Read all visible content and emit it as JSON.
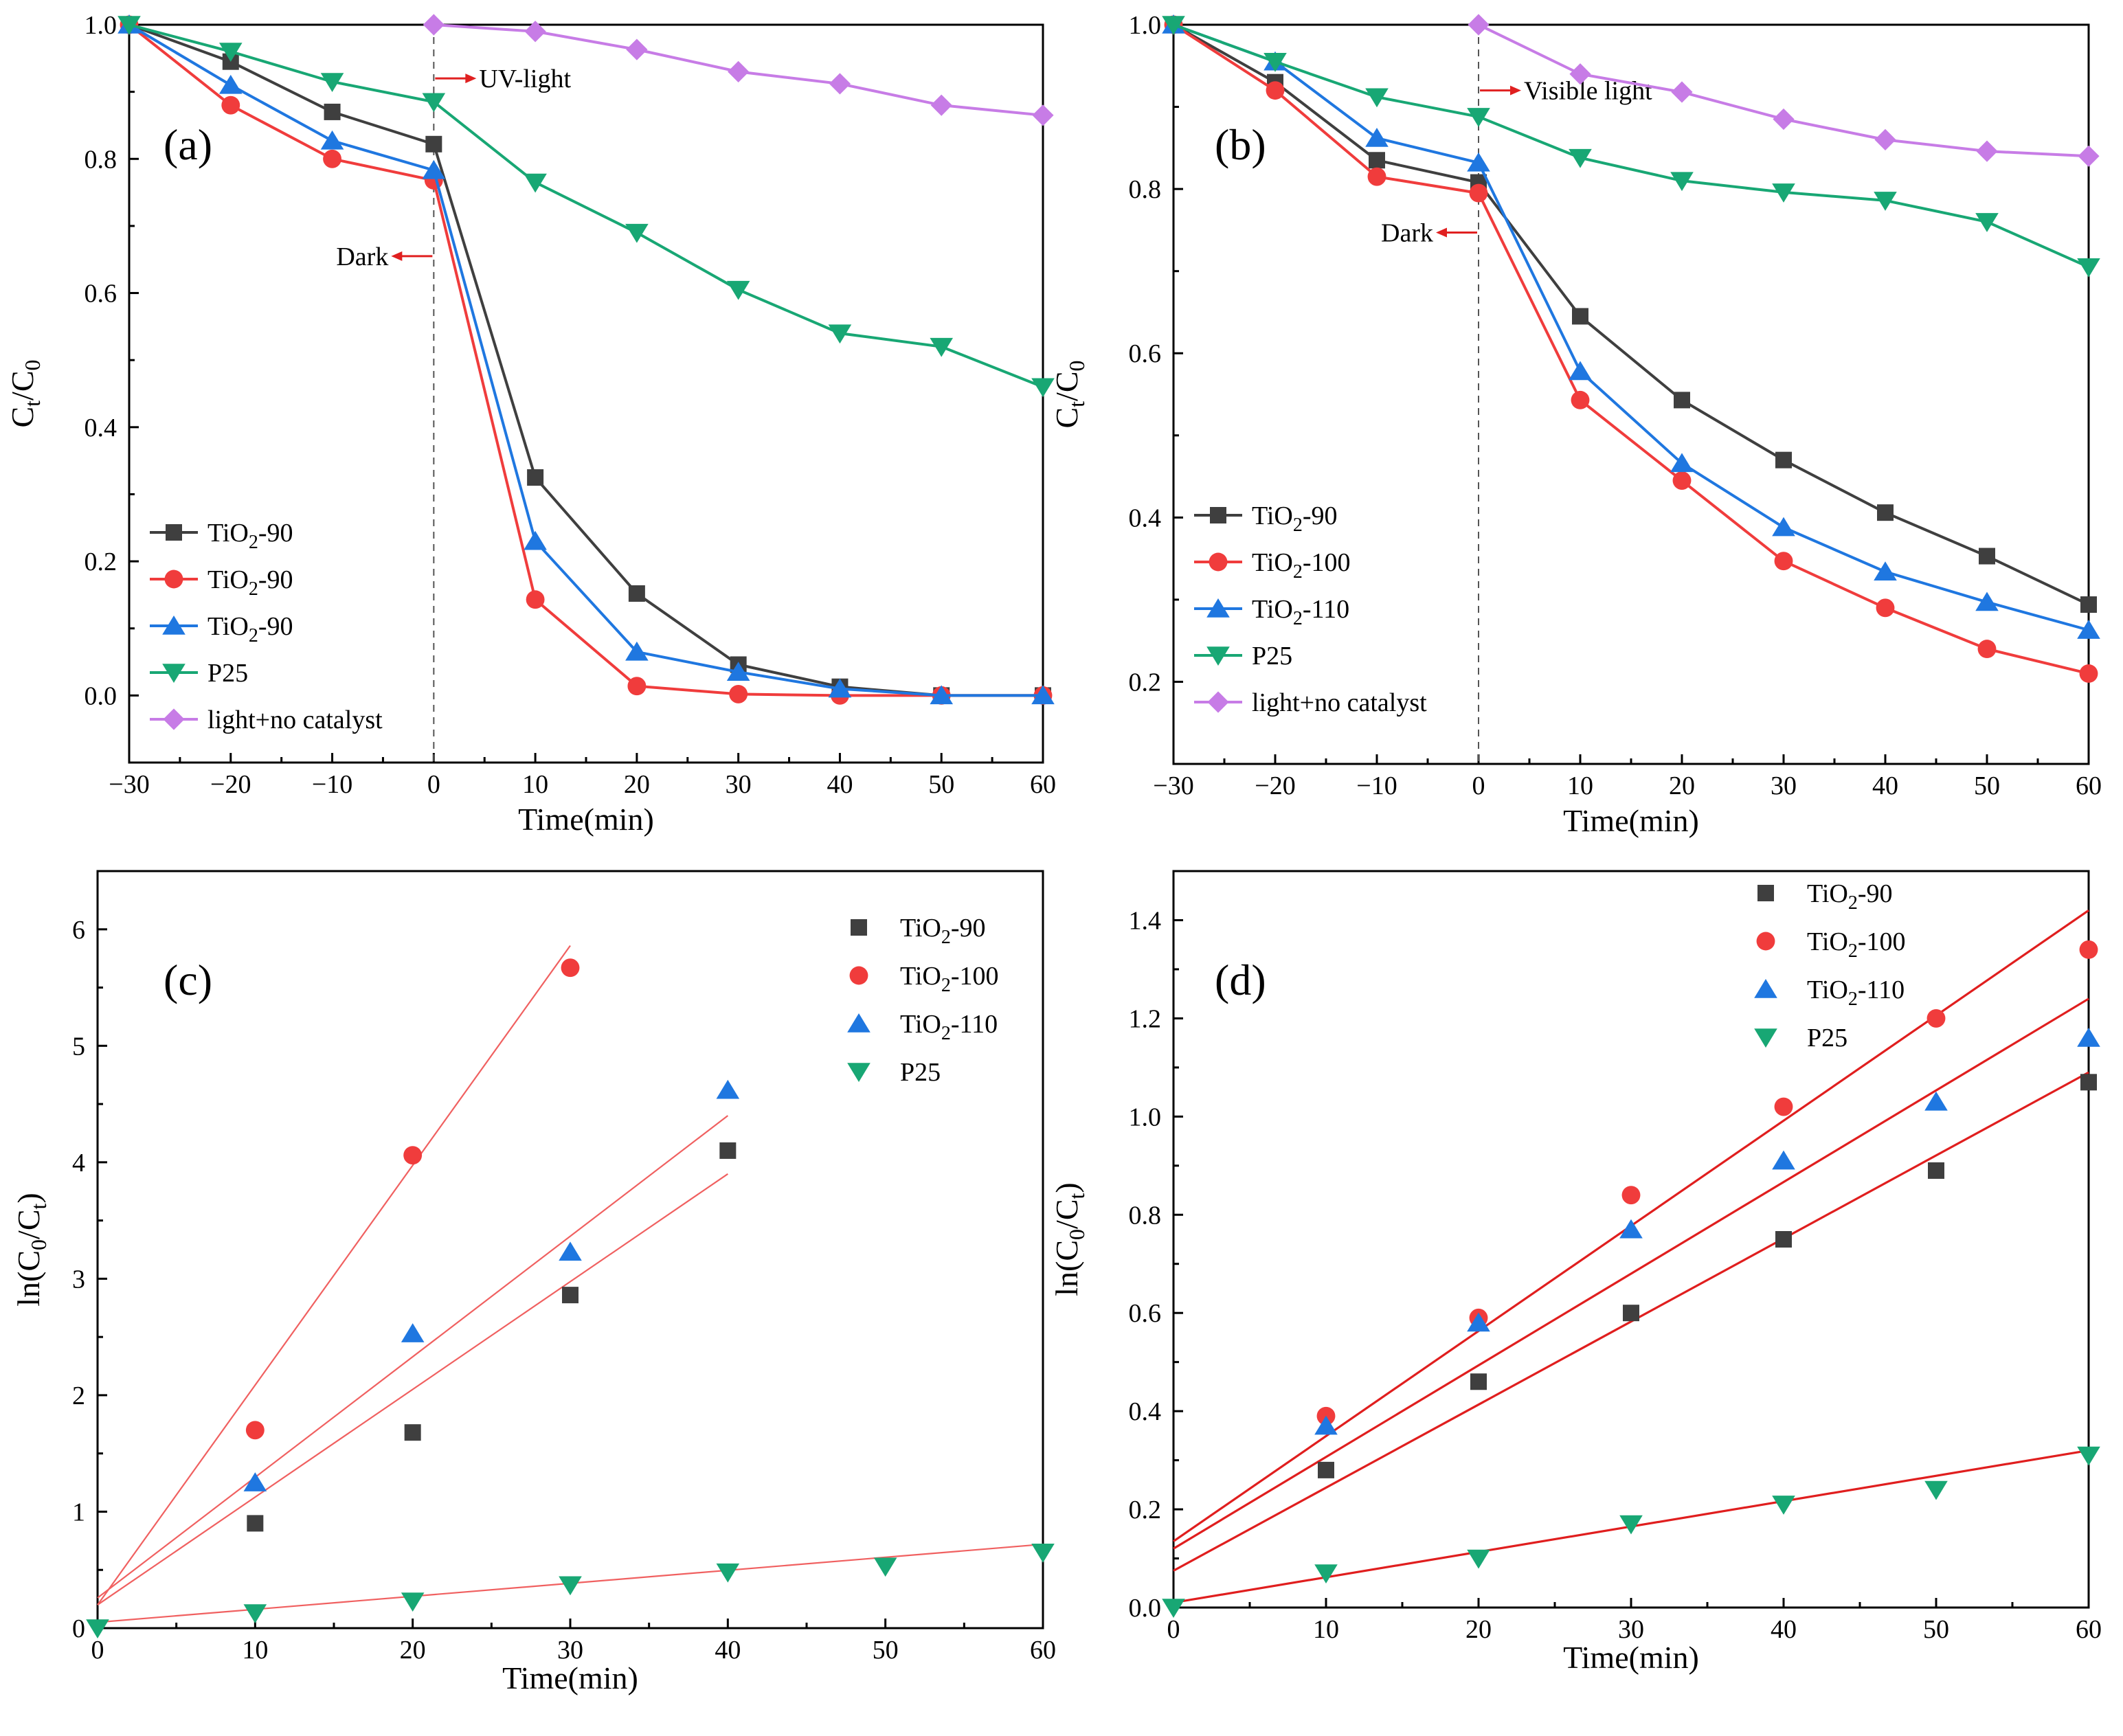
{
  "chart_data": [
    {
      "id": "a",
      "type": "line",
      "panel_label": "(a)",
      "xlabel": "Time(min)",
      "ylabel": "Ct/C0",
      "xlim": [
        -30,
        60
      ],
      "ylim": [
        -0.1,
        1.0
      ],
      "xticks": [
        -30,
        -20,
        -10,
        0,
        10,
        20,
        30,
        40,
        50,
        60
      ],
      "xtick_labels": [
        "−30",
        "−20",
        "−10",
        "0",
        "10",
        "20",
        "30",
        "40",
        "50",
        "60"
      ],
      "yticks": [
        0.0,
        0.2,
        0.4,
        0.6,
        0.8,
        1.0
      ],
      "ytick_labels": [
        "0.0",
        "0.2",
        "0.4",
        "0.6",
        "0.8",
        "1.0"
      ],
      "x": [
        -30,
        -20,
        -10,
        0,
        10,
        20,
        30,
        40,
        50,
        60
      ],
      "series": [
        {
          "name": "TiO2-90",
          "legend_main": "TiO",
          "legend_sub": "2",
          "legend_suffix": "-90",
          "marker": "square",
          "color": "#3f3f3f",
          "values": [
            1.0,
            0.945,
            0.87,
            0.822,
            0.325,
            0.152,
            0.046,
            0.013,
            0.0,
            0.0
          ]
        },
        {
          "name": "TiO2-90",
          "legend_main": "TiO",
          "legend_sub": "2",
          "legend_suffix": "-90",
          "marker": "circle",
          "color": "#f03c3c",
          "values": [
            1.0,
            0.88,
            0.8,
            0.768,
            0.143,
            0.014,
            0.002,
            0.0,
            0.0,
            0.0
          ]
        },
        {
          "name": "TiO2-90",
          "legend_main": "TiO",
          "legend_sub": "2",
          "legend_suffix": "-90",
          "marker": "triangle-up",
          "color": "#1f77e0",
          "values": [
            1.0,
            0.91,
            0.827,
            0.783,
            0.23,
            0.065,
            0.035,
            0.01,
            0.0,
            0.0
          ]
        },
        {
          "name": "P25",
          "legend_main": "P25",
          "legend_sub": "",
          "legend_suffix": "",
          "marker": "triangle-down",
          "color": "#18a774",
          "values": [
            1.0,
            0.96,
            0.915,
            0.885,
            0.765,
            0.69,
            0.605,
            0.54,
            0.52,
            0.46
          ]
        },
        {
          "name": "light+no catalyst",
          "legend_main": "light+no catalyst",
          "legend_sub": "",
          "legend_suffix": "",
          "marker": "diamond",
          "color": "#c77ce6",
          "x": [
            0,
            10,
            20,
            30,
            40,
            50,
            60
          ],
          "values": [
            1.0,
            0.99,
            0.963,
            0.93,
            0.912,
            0.88,
            0.865
          ]
        }
      ],
      "annotations": [
        {
          "text": "UV-light",
          "x": 0,
          "y": 0.92,
          "direction": "right"
        },
        {
          "text": "Dark",
          "x": 0,
          "y": 0.655,
          "direction": "left"
        }
      ],
      "legend_position": "bottom-left"
    },
    {
      "id": "b",
      "type": "line",
      "panel_label": "(b)",
      "xlabel": "Time(min)",
      "ylabel": "Ct/C0",
      "xlim": [
        -30,
        60
      ],
      "ylim": [
        0.1,
        1.0
      ],
      "xticks": [
        -30,
        -20,
        -10,
        0,
        10,
        20,
        30,
        40,
        50,
        60
      ],
      "xtick_labels": [
        "−30",
        "−20",
        "−10",
        "0",
        "10",
        "20",
        "30",
        "40",
        "50",
        "60"
      ],
      "yticks": [
        0.2,
        0.4,
        0.6,
        0.8,
        1.0
      ],
      "ytick_labels": [
        "0.2",
        "0.4",
        "0.6",
        "0.8",
        "1.0"
      ],
      "x": [
        -30,
        -20,
        -10,
        0,
        10,
        20,
        30,
        40,
        50,
        60
      ],
      "series": [
        {
          "name": "TiO2-90",
          "legend_main": "TiO",
          "legend_sub": "2",
          "legend_suffix": "-90",
          "marker": "square",
          "color": "#3f3f3f",
          "values": [
            1.0,
            0.93,
            0.835,
            0.808,
            0.645,
            0.543,
            0.47,
            0.406,
            0.353,
            0.294
          ]
        },
        {
          "name": "TiO2-100",
          "legend_main": "TiO",
          "legend_sub": "2",
          "legend_suffix": "-100",
          "marker": "circle",
          "color": "#f03c3c",
          "values": [
            1.0,
            0.92,
            0.815,
            0.795,
            0.543,
            0.445,
            0.347,
            0.29,
            0.24,
            0.21
          ]
        },
        {
          "name": "TiO2-110",
          "legend_main": "TiO",
          "legend_sub": "2",
          "legend_suffix": "-110",
          "marker": "triangle-up",
          "color": "#1f77e0",
          "values": [
            1.0,
            0.955,
            0.862,
            0.832,
            0.578,
            0.466,
            0.388,
            0.334,
            0.297,
            0.263
          ]
        },
        {
          "name": "P25",
          "legend_main": "P25",
          "legend_sub": "",
          "legend_suffix": "",
          "marker": "triangle-down",
          "color": "#18a774",
          "values": [
            1.0,
            0.955,
            0.912,
            0.888,
            0.838,
            0.81,
            0.796,
            0.786,
            0.76,
            0.705
          ]
        },
        {
          "name": "light+no catalyst",
          "legend_main": "light+no catalyst",
          "legend_sub": "",
          "legend_suffix": "",
          "marker": "diamond",
          "color": "#c77ce6",
          "x": [
            0,
            10,
            20,
            30,
            40,
            50,
            60
          ],
          "values": [
            1.0,
            0.94,
            0.918,
            0.885,
            0.86,
            0.846,
            0.84
          ]
        }
      ],
      "annotations": [
        {
          "text": "Visible light",
          "x": 0,
          "y": 0.92,
          "direction": "right"
        },
        {
          "text": "Dark",
          "x": 0,
          "y": 0.747,
          "direction": "left"
        }
      ],
      "legend_position": "bottom-left"
    },
    {
      "id": "c",
      "type": "scatter",
      "panel_label": "(c)",
      "xlabel": "Time(min)",
      "ylabel": "ln(C0/Ct)",
      "xlim": [
        0,
        60
      ],
      "ylim": [
        0,
        6.5
      ],
      "xticks": [
        0,
        10,
        20,
        30,
        40,
        50,
        60
      ],
      "xtick_labels": [
        "0",
        "10",
        "20",
        "30",
        "40",
        "50",
        "60"
      ],
      "yticks": [
        0,
        1,
        2,
        3,
        4,
        5,
        6
      ],
      "ytick_labels": [
        "0",
        "1",
        "2",
        "3",
        "4",
        "5",
        "6"
      ],
      "series": [
        {
          "name": "TiO2-90",
          "legend_main": "TiO",
          "legend_sub": "2",
          "legend_suffix": "-90",
          "marker": "square",
          "color": "#3f3f3f",
          "x": [
            10,
            20,
            30,
            40
          ],
          "values": [
            0.9,
            1.68,
            2.86,
            4.1
          ],
          "fit": {
            "x0": 0,
            "y0": 0.2,
            "x1": 40,
            "y1": 3.9
          }
        },
        {
          "name": "TiO2-100",
          "legend_main": "TiO",
          "legend_sub": "2",
          "legend_suffix": "-100",
          "marker": "circle",
          "color": "#f03c3c",
          "x": [
            10,
            20,
            30
          ],
          "values": [
            1.7,
            4.06,
            5.67
          ],
          "fit": {
            "x0": 0,
            "y0": 0.2,
            "x1": 30,
            "y1": 5.86
          }
        },
        {
          "name": "TiO2-110",
          "legend_main": "TiO",
          "legend_sub": "2",
          "legend_suffix": "-110",
          "marker": "triangle-up",
          "color": "#1f77e0",
          "x": [
            10,
            20,
            30,
            40
          ],
          "values": [
            1.25,
            2.53,
            3.23,
            4.62
          ],
          "fit": {
            "x0": 0,
            "y0": 0.26,
            "x1": 40,
            "y1": 4.4
          }
        },
        {
          "name": "P25",
          "legend_main": "P25",
          "legend_sub": "",
          "legend_suffix": "",
          "marker": "triangle-down",
          "color": "#18a774",
          "x": [
            0,
            10,
            20,
            30,
            40,
            50,
            60
          ],
          "values": [
            0.0,
            0.13,
            0.23,
            0.37,
            0.48,
            0.53,
            0.65
          ],
          "fit": {
            "x0": 0,
            "y0": 0.05,
            "x1": 60,
            "y1": 0.72
          }
        }
      ],
      "fit_color": "#f06060",
      "legend_position": "top-right"
    },
    {
      "id": "d",
      "type": "scatter",
      "panel_label": "(d)",
      "xlabel": "Time(min)",
      "ylabel": "ln(C0/Ct)",
      "xlim": [
        0,
        60
      ],
      "ylim": [
        0,
        1.5
      ],
      "xticks": [
        0,
        10,
        20,
        30,
        40,
        50,
        60
      ],
      "xtick_labels": [
        "0",
        "10",
        "20",
        "30",
        "40",
        "50",
        "60"
      ],
      "yticks": [
        0.0,
        0.2,
        0.4,
        0.6,
        0.8,
        1.0,
        1.2,
        1.4
      ],
      "ytick_labels": [
        "0.0",
        "0.2",
        "0.4",
        "0.6",
        "0.8",
        "1.0",
        "1.2",
        "1.4"
      ],
      "series": [
        {
          "name": "TiO2-90",
          "legend_main": "TiO",
          "legend_sub": "2",
          "legend_suffix": "-90",
          "marker": "square",
          "color": "#3f3f3f",
          "x": [
            10,
            20,
            30,
            40,
            50,
            60
          ],
          "values": [
            0.28,
            0.46,
            0.6,
            0.75,
            0.89,
            1.07
          ],
          "fit": {
            "x0": 0,
            "y0": 0.075,
            "x1": 60,
            "y1": 1.09
          }
        },
        {
          "name": "TiO2-100",
          "legend_main": "TiO",
          "legend_sub": "2",
          "legend_suffix": "-100",
          "marker": "circle",
          "color": "#f03c3c",
          "x": [
            10,
            20,
            30,
            40,
            50,
            60
          ],
          "values": [
            0.39,
            0.59,
            0.84,
            1.02,
            1.2,
            1.34
          ],
          "fit": {
            "x0": 0,
            "y0": 0.135,
            "x1": 60,
            "y1": 1.42
          }
        },
        {
          "name": "TiO2-110",
          "legend_main": "TiO",
          "legend_sub": "2",
          "legend_suffix": "-110",
          "marker": "triangle-up",
          "color": "#1f77e0",
          "x": [
            10,
            20,
            30,
            40,
            50,
            60
          ],
          "values": [
            0.37,
            0.58,
            0.77,
            0.91,
            1.03,
            1.16
          ],
          "fit": {
            "x0": 0,
            "y0": 0.12,
            "x1": 60,
            "y1": 1.24
          }
        },
        {
          "name": "P25",
          "legend_main": "P25",
          "legend_sub": "",
          "legend_suffix": "",
          "marker": "triangle-down",
          "color": "#18a774",
          "x": [
            0,
            10,
            20,
            30,
            40,
            50,
            60
          ],
          "values": [
            0.0,
            0.07,
            0.1,
            0.17,
            0.21,
            0.24,
            0.31
          ],
          "fit": {
            "x0": 0,
            "y0": 0.01,
            "x1": 60,
            "y1": 0.32
          }
        }
      ],
      "fit_color": "#e01e1e",
      "legend_position": "top-left"
    }
  ]
}
